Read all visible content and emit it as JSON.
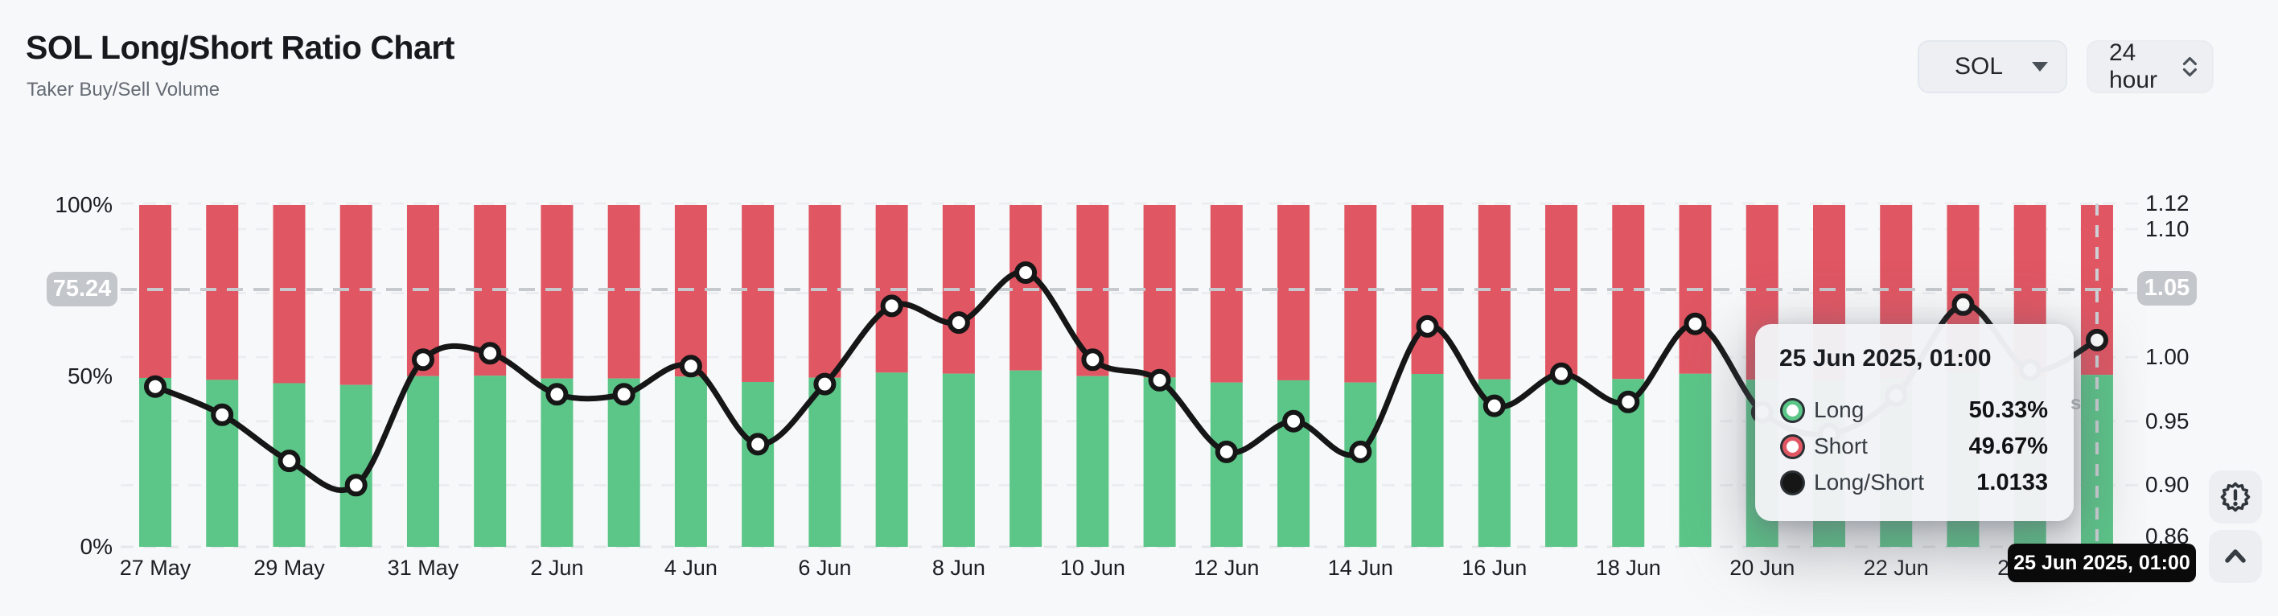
{
  "header": {
    "title": "SOL Long/Short Ratio Chart",
    "subtitle": "Taker Buy/Sell Volume"
  },
  "controls": {
    "symbol": {
      "value": "SOL",
      "icon": "caret-down-icon"
    },
    "interval": {
      "value": "24 hour",
      "icon": "up-down-chevrons-icon"
    }
  },
  "chart_data": {
    "type": "bar",
    "stacked": true,
    "overlay": "line",
    "title": "SOL Long/Short Ratio Chart",
    "categories": [
      "27 May",
      "28 May",
      "29 May",
      "30 May",
      "31 May",
      "1 Jun",
      "2 Jun",
      "3 Jun",
      "4 Jun",
      "5 Jun",
      "6 Jun",
      "7 Jun",
      "8 Jun",
      "9 Jun",
      "10 Jun",
      "11 Jun",
      "12 Jun",
      "13 Jun",
      "14 Jun",
      "15 Jun",
      "16 Jun",
      "17 Jun",
      "18 Jun",
      "19 Jun",
      "20 Jun",
      "21 Jun",
      "22 Jun",
      "23 Jun",
      "24 Jun",
      "25 Jun"
    ],
    "series": [
      {
        "name": "Long",
        "type": "bar",
        "unit": "%",
        "color": "#5bc688",
        "values": [
          49.42,
          48.85,
          47.89,
          47.37,
          49.95,
          50.07,
          49.26,
          49.26,
          49.82,
          48.24,
          49.47,
          50.98,
          50.67,
          51.6,
          49.95,
          49.55,
          48.08,
          48.72,
          48.08,
          50.59,
          49.03,
          49.67,
          49.11,
          50.64,
          48.9,
          48.45,
          49.24,
          51.0,
          49.75,
          50.33
        ]
      },
      {
        "name": "Short",
        "type": "bar",
        "unit": "%",
        "color": "#e05663",
        "values": [
          50.58,
          51.15,
          52.11,
          52.63,
          50.05,
          49.93,
          50.74,
          50.74,
          50.18,
          51.76,
          50.53,
          49.02,
          49.33,
          48.4,
          50.05,
          50.45,
          51.92,
          51.28,
          51.92,
          49.41,
          50.97,
          50.33,
          50.89,
          49.36,
          51.1,
          51.55,
          50.76,
          49.0,
          50.25,
          49.67
        ]
      },
      {
        "name": "Long/Short",
        "type": "line",
        "axis": "right",
        "color": "#161616",
        "values": [
          0.977,
          0.955,
          0.919,
          0.9,
          0.998,
          1.003,
          0.971,
          0.971,
          0.993,
          0.932,
          0.979,
          1.04,
          1.027,
          1.066,
          0.998,
          0.982,
          0.926,
          0.95,
          0.926,
          1.024,
          0.962,
          0.987,
          0.965,
          1.026,
          0.957,
          0.94,
          0.97,
          1.041,
          0.99,
          1.0133
        ]
      }
    ],
    "x_tick_labels": [
      "27 May",
      "29 May",
      "31 May",
      "2 Jun",
      "4 Jun",
      "6 Jun",
      "8 Jun",
      "10 Jun",
      "12 Jun",
      "14 Jun",
      "16 Jun",
      "18 Jun",
      "20 Jun",
      "22 Jun",
      "24 Jun"
    ],
    "left_axis": {
      "range": [
        0,
        100
      ],
      "ticks": [
        {
          "label": "100%",
          "value": 100
        },
        {
          "label": "50%",
          "value": 50
        },
        {
          "label": "0%",
          "value": 0
        }
      ]
    },
    "right_axis": {
      "range": [
        0.86,
        1.12
      ],
      "ticks": [
        {
          "label": "1.12",
          "value": 1.12
        },
        {
          "label": "1.10",
          "value": 1.1
        },
        {
          "label": "1.05",
          "value": 1.05
        },
        {
          "label": "1.00",
          "value": 1.0
        },
        {
          "label": "0.95",
          "value": 0.95
        },
        {
          "label": "0.90",
          "value": 0.9
        },
        {
          "label": "0.86",
          "value": 0.86
        }
      ]
    },
    "grid": "dashed-horizontal",
    "legend_position": "tooltip-only"
  },
  "crosshair": {
    "left_value": "75.24",
    "right_value": "1.05",
    "x_label": "25 Jun 2025, 01:00",
    "hover_category": "25 Jun"
  },
  "tooltip": {
    "title": "25 Jun 2025, 01:00",
    "rows": [
      {
        "label": "Long",
        "value": "50.33%",
        "color": "#5bc688",
        "dot_style": "ring"
      },
      {
        "label": "Short",
        "value": "49.67%",
        "color": "#e05663",
        "dot_style": "ring"
      },
      {
        "label": "Long/Short",
        "value": "1.0133",
        "color": "#161616",
        "dot_style": "solid"
      }
    ]
  },
  "watermark": {
    "text": "s"
  },
  "colors": {
    "long": "#5bc688",
    "short": "#e05663",
    "ratio_line": "#161616",
    "background": "#f7f8f9",
    "crosshair_badge": "#c3c6ca"
  }
}
